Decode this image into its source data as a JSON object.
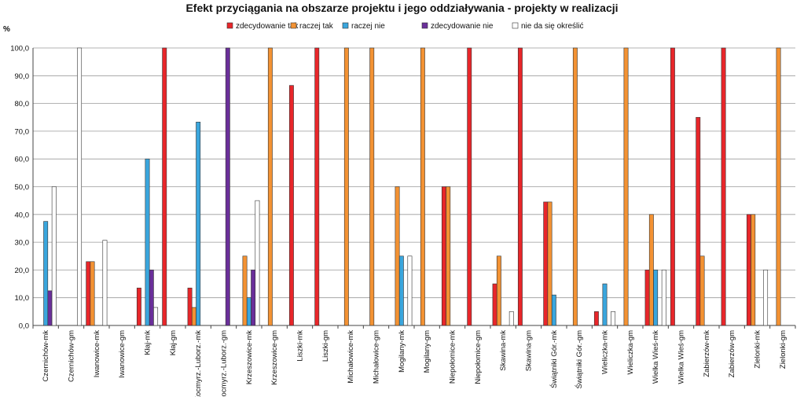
{
  "chart_data": {
    "type": "bar",
    "title": "Efekt przyciągania na obszarze projektu i jego oddziaływania  - projekty w realizacji",
    "ylabel": "%",
    "ylim": [
      0,
      100
    ],
    "yticks": [
      "0,0",
      "10,0",
      "20,0",
      "30,0",
      "40,0",
      "50,0",
      "60,0",
      "70,0",
      "80,0",
      "90,0",
      "100,0"
    ],
    "grid": true,
    "legend": "top",
    "categories": [
      "Czernichów-mk",
      "Czernichów-gm",
      "Iwanowice-mk",
      "Iwanowice-gm",
      "Kłaj-mk",
      "Kłaj-gm",
      "Kocmyrz.-Luborz.-mk",
      "Kocmyrz.-Luborz.-gm",
      "Krzeszowice-mk",
      "Krzeszowice-gm",
      "Liszki-mk",
      "Liszki-gm",
      "Michałowice-mk",
      "Michałowice-gm",
      "Mogilany-mk",
      "Mogilany-gm",
      "Niepołomice-mk",
      "Niepołomice-gm",
      "Skawina-mk",
      "Skawina-gm",
      "Świątniki Gór.-mk",
      "Świątniki Gór.-gm",
      "Wieliczka-mk",
      "Wieliczka-gm",
      "Wielka Wieś-mk",
      "Wielka Wieś-gm",
      "Zabierzów-mk",
      "Zabierzów-gm",
      "Zielonki-mk",
      "Zielonki-gm"
    ],
    "series": [
      {
        "name": "zdecydowanie tak",
        "color": "#e8262a",
        "values": [
          0,
          0,
          23,
          0,
          13.5,
          100,
          13.5,
          0,
          0,
          0,
          86.5,
          100,
          0,
          0,
          0,
          0,
          50,
          100,
          15,
          100,
          44.5,
          0,
          5,
          0,
          20,
          100,
          75,
          100,
          40,
          0
        ]
      },
      {
        "name": "raczej tak",
        "color": "#f39233",
        "values": [
          0,
          0,
          23,
          0,
          0,
          0,
          6.5,
          0,
          25,
          100,
          0,
          0,
          100,
          100,
          50,
          100,
          50,
          0,
          25,
          0,
          44.5,
          100,
          0,
          100,
          40,
          0,
          25,
          0,
          40,
          100
        ]
      },
      {
        "name": "raczej nie",
        "color": "#3aa6dd",
        "values": [
          37.5,
          0,
          0,
          0,
          60,
          0,
          73.3,
          0,
          10,
          0,
          0,
          0,
          0,
          0,
          25,
          0,
          0,
          0,
          0,
          0,
          11,
          0,
          15,
          0,
          20,
          0,
          0,
          0,
          0,
          0
        ]
      },
      {
        "name": "zdecydowanie nie",
        "color": "#6a2f9a",
        "values": [
          12.5,
          0,
          0,
          0,
          20,
          0,
          0,
          100,
          20,
          0,
          0,
          0,
          0,
          0,
          0,
          0,
          0,
          0,
          0,
          0,
          0,
          0,
          0,
          0,
          0,
          0,
          0,
          0,
          0,
          0
        ]
      },
      {
        "name": "nie da się określić",
        "color": "#ffffff",
        "values": [
          50,
          100,
          30.7,
          0,
          6.5,
          0,
          0,
          0,
          45,
          0,
          0,
          0,
          0,
          0,
          25,
          0,
          0,
          0,
          5,
          0,
          0,
          0,
          5,
          0,
          20,
          0,
          0,
          0,
          20,
          0
        ]
      }
    ]
  }
}
